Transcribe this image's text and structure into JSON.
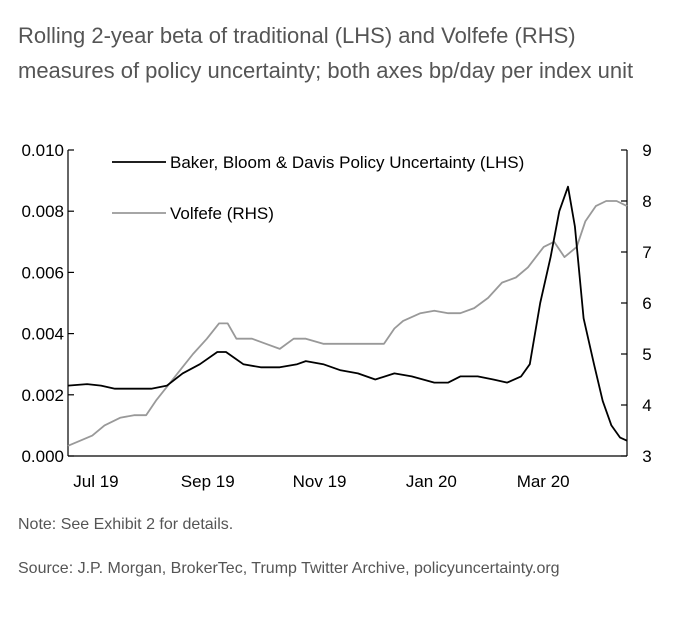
{
  "title": "Rolling 2-year beta of traditional (LHS) and Volfefe (RHS) measures of policy uncertainty; both axes bp/day per index unit",
  "note": "Note: See Exhibit 2 for details.",
  "source": "Source: J.P. Morgan, BrokerTec, Trump Twitter Archive, policyuncertainty.org",
  "colors": {
    "traditional": "#000000",
    "volfefe": "#999999"
  },
  "chart_data": {
    "type": "line",
    "title": "",
    "xlabel": "",
    "ylabel_left": "",
    "ylabel_right": "",
    "x_ticks": [
      "Jul 19",
      "Sep 19",
      "Nov 19",
      "Jan 20",
      "Mar 20"
    ],
    "ylim_left": [
      0,
      0.01
    ],
    "yticks_left": [
      "0.000",
      "0.002",
      "0.004",
      "0.006",
      "0.008",
      "0.010"
    ],
    "ylim_right": [
      3,
      9
    ],
    "yticks_right": [
      "3",
      "4",
      "5",
      "6",
      "7",
      "8",
      "9"
    ],
    "grid": false,
    "legend_position": "top-left",
    "x_range": [
      "2019-07-01",
      "2020-05-18"
    ],
    "series": [
      {
        "name": "Baker, Bloom & Davis Policy Uncertainty (LHS)",
        "axis": "left",
        "points": [
          [
            "2019-07-01",
            0.0023
          ],
          [
            "2019-07-12",
            0.00235
          ],
          [
            "2019-07-20",
            0.0023
          ],
          [
            "2019-07-28",
            0.0022
          ],
          [
            "2019-08-08",
            0.0022
          ],
          [
            "2019-08-18",
            0.0022
          ],
          [
            "2019-08-27",
            0.0023
          ],
          [
            "2019-09-05",
            0.0027
          ],
          [
            "2019-09-15",
            0.003
          ],
          [
            "2019-09-25",
            0.0034
          ],
          [
            "2019-09-30",
            0.0034
          ],
          [
            "2019-10-05",
            0.0032
          ],
          [
            "2019-10-10",
            0.003
          ],
          [
            "2019-10-20",
            0.0029
          ],
          [
            "2019-10-31",
            0.0029
          ],
          [
            "2019-11-10",
            0.003
          ],
          [
            "2019-11-15",
            0.0031
          ],
          [
            "2019-11-25",
            0.003
          ],
          [
            "2019-12-05",
            0.0028
          ],
          [
            "2019-12-15",
            0.0027
          ],
          [
            "2019-12-25",
            0.0025
          ],
          [
            "2020-01-05",
            0.0027
          ],
          [
            "2020-01-15",
            0.0026
          ],
          [
            "2020-01-28",
            0.0024
          ],
          [
            "2020-02-05",
            0.0024
          ],
          [
            "2020-02-12",
            0.0026
          ],
          [
            "2020-02-22",
            0.0026
          ],
          [
            "2020-03-02",
            0.0025
          ],
          [
            "2020-03-10",
            0.0024
          ],
          [
            "2020-03-18",
            0.0026
          ],
          [
            "2020-03-23",
            0.003
          ],
          [
            "2020-03-29",
            0.005
          ],
          [
            "2020-04-04",
            0.0065
          ],
          [
            "2020-04-09",
            0.008
          ],
          [
            "2020-04-14",
            0.0088
          ],
          [
            "2020-04-18",
            0.0075
          ],
          [
            "2020-04-23",
            0.0045
          ],
          [
            "2020-04-29",
            0.003
          ],
          [
            "2020-05-04",
            0.0018
          ],
          [
            "2020-05-09",
            0.001
          ],
          [
            "2020-05-14",
            0.0006
          ],
          [
            "2020-05-18",
            0.0005
          ]
        ]
      },
      {
        "name": "Volfefe (RHS)",
        "axis": "right",
        "points": [
          [
            "2019-07-01",
            3.2
          ],
          [
            "2019-07-08",
            3.3
          ],
          [
            "2019-07-15",
            3.4
          ],
          [
            "2019-07-22",
            3.6
          ],
          [
            "2019-07-31",
            3.75
          ],
          [
            "2019-08-08",
            3.8
          ],
          [
            "2019-08-15",
            3.8
          ],
          [
            "2019-08-21",
            4.1
          ],
          [
            "2019-08-28",
            4.4
          ],
          [
            "2019-09-04",
            4.7
          ],
          [
            "2019-09-11",
            5.0
          ],
          [
            "2019-09-19",
            5.3
          ],
          [
            "2019-09-26",
            5.6
          ],
          [
            "2019-10-01",
            5.6
          ],
          [
            "2019-10-06",
            5.3
          ],
          [
            "2019-10-15",
            5.3
          ],
          [
            "2019-10-23",
            5.2
          ],
          [
            "2019-10-31",
            5.1
          ],
          [
            "2019-11-08",
            5.3
          ],
          [
            "2019-11-15",
            5.3
          ],
          [
            "2019-11-25",
            5.2
          ],
          [
            "2019-12-05",
            5.2
          ],
          [
            "2019-12-20",
            5.2
          ],
          [
            "2019-12-30",
            5.2
          ],
          [
            "2020-01-05",
            5.5
          ],
          [
            "2020-01-10",
            5.65
          ],
          [
            "2020-01-20",
            5.8
          ],
          [
            "2020-01-28",
            5.85
          ],
          [
            "2020-02-05",
            5.8
          ],
          [
            "2020-02-12",
            5.8
          ],
          [
            "2020-02-20",
            5.9
          ],
          [
            "2020-02-28",
            6.1
          ],
          [
            "2020-03-07",
            6.4
          ],
          [
            "2020-03-15",
            6.5
          ],
          [
            "2020-03-22",
            6.7
          ],
          [
            "2020-03-31",
            7.1
          ],
          [
            "2020-04-06",
            7.2
          ],
          [
            "2020-04-12",
            6.9
          ],
          [
            "2020-04-19",
            7.1
          ],
          [
            "2020-04-24",
            7.6
          ],
          [
            "2020-04-30",
            7.9
          ],
          [
            "2020-05-06",
            8.0
          ],
          [
            "2020-05-12",
            8.0
          ],
          [
            "2020-05-18",
            7.9
          ]
        ]
      }
    ]
  }
}
